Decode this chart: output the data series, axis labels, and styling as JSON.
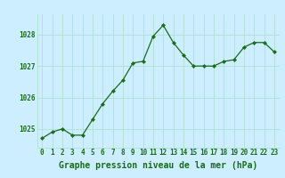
{
  "x": [
    0,
    1,
    2,
    3,
    4,
    5,
    6,
    7,
    8,
    9,
    10,
    11,
    12,
    13,
    14,
    15,
    16,
    17,
    18,
    19,
    20,
    21,
    22,
    23
  ],
  "y": [
    1024.7,
    1024.9,
    1025.0,
    1024.8,
    1024.8,
    1025.3,
    1025.8,
    1026.2,
    1026.55,
    1027.1,
    1027.15,
    1027.95,
    1028.3,
    1027.75,
    1027.35,
    1027.0,
    1027.0,
    1027.0,
    1027.15,
    1027.2,
    1027.6,
    1027.75,
    1027.75,
    1027.45
  ],
  "line_color": "#1a6b1a",
  "marker_color": "#1a6b1a",
  "bg_color": "#cceeff",
  "grid_color": "#aaddcc",
  "xlabel": "Graphe pression niveau de la mer (hPa)",
  "ylabel_ticks": [
    1025,
    1026,
    1027,
    1028
  ],
  "xlim": [
    -0.5,
    23.5
  ],
  "ylim": [
    1024.4,
    1028.65
  ],
  "label_color": "#1a6b1a",
  "tick_fontsize": 5.5,
  "xlabel_fontsize": 7.0
}
